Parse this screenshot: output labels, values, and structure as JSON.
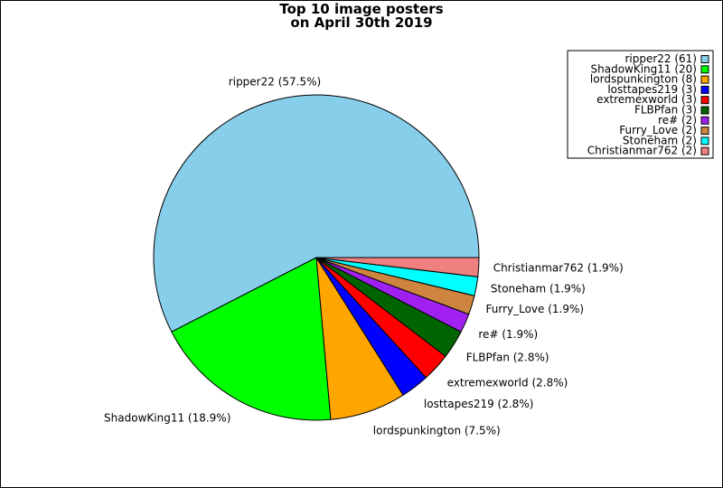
{
  "chart_data": {
    "type": "pie",
    "title_lines": [
      "Top 10 image posters",
      "on April 30th 2019"
    ],
    "legend_position": "top-right",
    "slices": [
      {
        "name": "ripper22",
        "value": 61,
        "percent": "57.5%",
        "color": "#87ceeb"
      },
      {
        "name": "ShadowKing11",
        "value": 20,
        "percent": "18.9%",
        "color": "#00ff00"
      },
      {
        "name": "lordspunkington",
        "value": 8,
        "percent": "7.5%",
        "color": "#ffa500"
      },
      {
        "name": "losttapes219",
        "value": 3,
        "percent": "2.8%",
        "color": "#0000ff"
      },
      {
        "name": "extremexworld",
        "value": 3,
        "percent": "2.8%",
        "color": "#ff0000"
      },
      {
        "name": "FLBPfan",
        "value": 3,
        "percent": "2.8%",
        "color": "#006400"
      },
      {
        "name": "re#",
        "value": 2,
        "percent": "1.9%",
        "color": "#a020f0"
      },
      {
        "name": "Furry_Love",
        "value": 2,
        "percent": "1.9%",
        "color": "#cd853f"
      },
      {
        "name": "Stoneham",
        "value": 2,
        "percent": "1.9%",
        "color": "#00ffff"
      },
      {
        "name": "Christianmar762",
        "value": 2,
        "percent": "1.9%",
        "color": "#f08080"
      }
    ]
  }
}
